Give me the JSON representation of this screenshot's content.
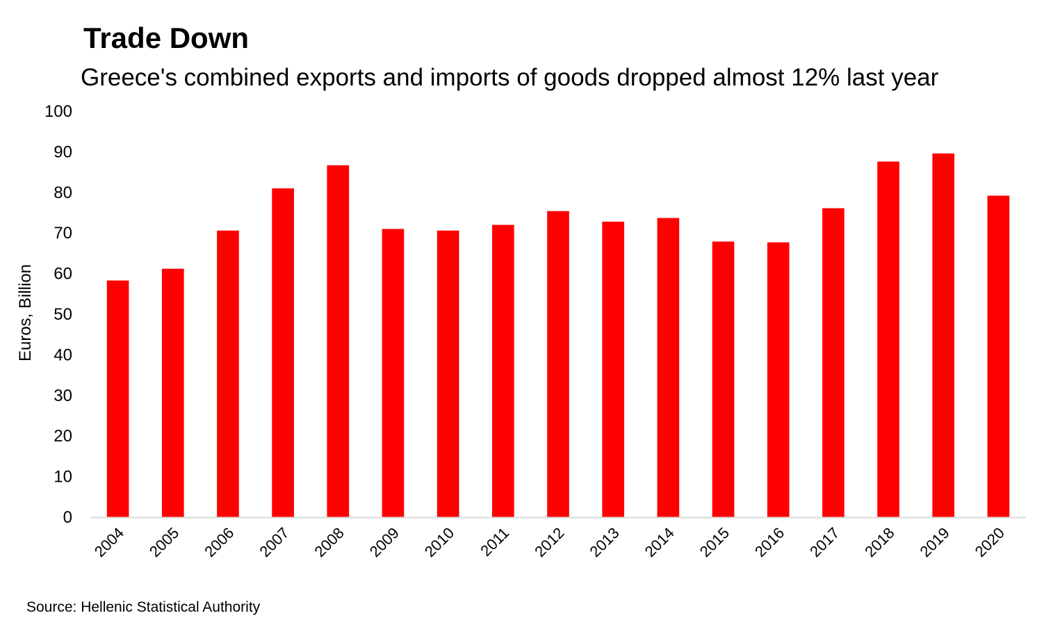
{
  "chart_data": {
    "type": "bar",
    "title": "Trade Down",
    "subtitle": "Greece's combined exports and imports of goods dropped almost 12% last year",
    "xlabel": "",
    "ylabel": "Euros, Billion",
    "ylim": [
      0,
      100
    ],
    "yticks": [
      0,
      10,
      20,
      30,
      40,
      50,
      60,
      70,
      80,
      90,
      100
    ],
    "grid": false,
    "legend": "none",
    "categories": [
      "2004",
      "2005",
      "2006",
      "2007",
      "2008",
      "2009",
      "2010",
      "2011",
      "2012",
      "2013",
      "2014",
      "2015",
      "2016",
      "2017",
      "2018",
      "2019",
      "2020"
    ],
    "values": [
      58.3,
      61.2,
      70.6,
      81.0,
      86.7,
      71.0,
      70.6,
      72.0,
      75.4,
      72.8,
      73.7,
      67.9,
      67.7,
      76.1,
      87.6,
      89.6,
      79.2
    ],
    "bar_color": "#ff0000",
    "source": "Source: Hellenic Statistical Authority"
  }
}
